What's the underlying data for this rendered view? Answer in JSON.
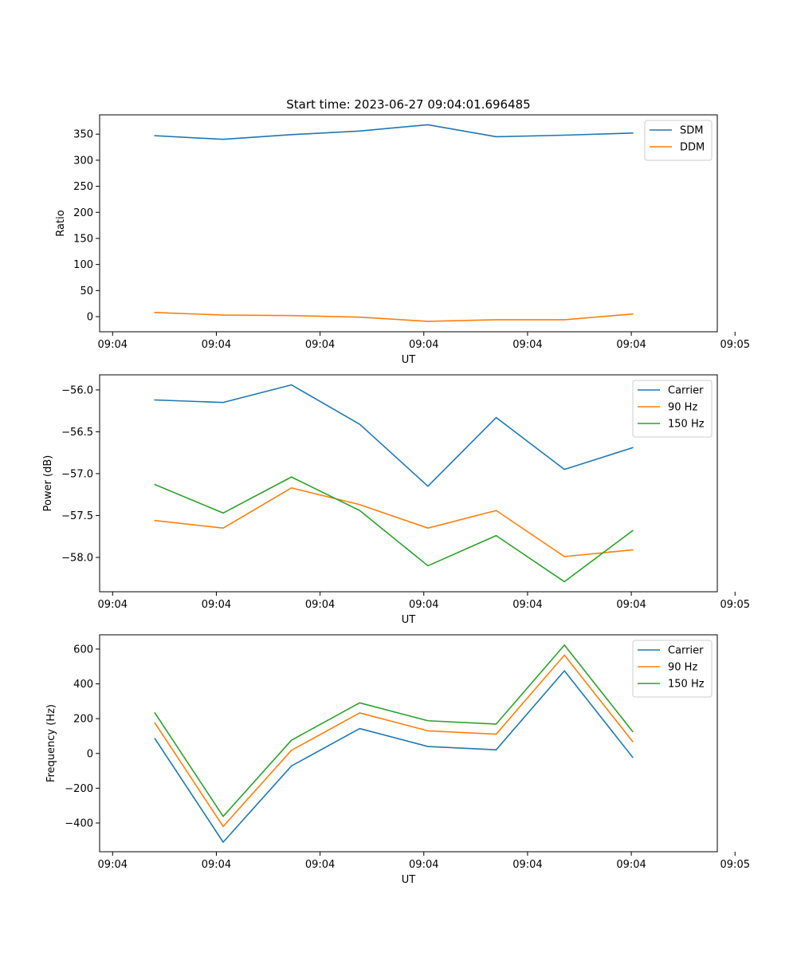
{
  "figure": {
    "title": "Start time: 2023-06-27 09:04:01.696485"
  },
  "colors": {
    "blue": "#1f77b4",
    "orange": "#ff7f0e",
    "green": "#2ca02c"
  },
  "chart_data": [
    {
      "type": "line",
      "title": "Start time: 2023-06-27 09:04:01.696485",
      "xlabel": "UT",
      "ylabel": "Ratio",
      "x": [
        1,
        2,
        3,
        4,
        5,
        6,
        7,
        8
      ],
      "xlim": [
        0.19,
        9.24
      ],
      "x_ticks": [
        0.38,
        1.9,
        3.42,
        4.94,
        6.46,
        7.98,
        9.5
      ],
      "x_tick_labels": [
        "09:04",
        "09:04",
        "09:04",
        "09:04",
        "09:04",
        "09:04",
        "09:05"
      ],
      "ylim": [
        -29,
        387
      ],
      "y_ticks": [
        0,
        50,
        100,
        150,
        200,
        250,
        300,
        350
      ],
      "y_tick_labels": [
        "0",
        "50",
        "100",
        "150",
        "200",
        "250",
        "300",
        "350"
      ],
      "legend_position": "upper right",
      "grid": false,
      "series": [
        {
          "name": "SDM",
          "color": "blue",
          "values": [
            347,
            340,
            349,
            356,
            368,
            345,
            348,
            352
          ]
        },
        {
          "name": "DDM",
          "color": "orange",
          "values": [
            8,
            3,
            2,
            -1,
            -9,
            -6,
            -6,
            5
          ]
        }
      ]
    },
    {
      "type": "line",
      "title": "",
      "xlabel": "UT",
      "ylabel": "Power (dB)",
      "x": [
        1,
        2,
        3,
        4,
        5,
        6,
        7,
        8
      ],
      "xlim": [
        0.19,
        9.24
      ],
      "x_ticks": [
        0.38,
        1.9,
        3.42,
        4.94,
        6.46,
        7.98,
        9.5
      ],
      "x_tick_labels": [
        "09:04",
        "09:04",
        "09:04",
        "09:04",
        "09:04",
        "09:04",
        "09:05"
      ],
      "ylim": [
        -58.41,
        -55.82
      ],
      "y_ticks": [
        -58.0,
        -57.5,
        -57.0,
        -56.5,
        -56.0
      ],
      "y_tick_labels": [
        "−58.0",
        "−57.5",
        "−57.0",
        "−56.5",
        "−56.0"
      ],
      "legend_position": "upper right",
      "grid": false,
      "series": [
        {
          "name": "Carrier",
          "color": "blue",
          "values": [
            -56.12,
            -56.15,
            -55.94,
            -56.41,
            -57.15,
            -56.33,
            -56.95,
            -56.69
          ]
        },
        {
          "name": "90 Hz",
          "color": "orange",
          "values": [
            -57.56,
            -57.65,
            -57.17,
            -57.37,
            -57.65,
            -57.44,
            -57.99,
            -57.91
          ]
        },
        {
          "name": "150 Hz",
          "color": "green",
          "values": [
            -57.13,
            -57.47,
            -57.04,
            -57.44,
            -58.1,
            -57.74,
            -58.29,
            -57.68
          ]
        }
      ]
    },
    {
      "type": "line",
      "title": "",
      "xlabel": "UT",
      "ylabel": "Frequency (Hz)",
      "x": [
        1,
        2,
        3,
        4,
        5,
        6,
        7,
        8
      ],
      "xlim": [
        0.19,
        9.24
      ],
      "x_ticks": [
        0.38,
        1.9,
        3.42,
        4.94,
        6.46,
        7.98,
        9.5
      ],
      "x_tick_labels": [
        "09:04",
        "09:04",
        "09:04",
        "09:04",
        "09:04",
        "09:04",
        "09:05"
      ],
      "ylim": [
        -565,
        682
      ],
      "y_ticks": [
        -400,
        -200,
        0,
        200,
        400,
        600
      ],
      "y_tick_labels": [
        "−400",
        "−200",
        "0",
        "200",
        "400",
        "600"
      ],
      "legend_position": "upper right",
      "grid": false,
      "series": [
        {
          "name": "Carrier",
          "color": "blue",
          "values": [
            85,
            -510,
            -72,
            143,
            40,
            21,
            475,
            -22
          ]
        },
        {
          "name": "90 Hz",
          "color": "orange",
          "values": [
            175,
            -420,
            18,
            233,
            130,
            111,
            565,
            68
          ]
        },
        {
          "name": "150 Hz",
          "color": "green",
          "values": [
            233,
            -362,
            76,
            291,
            188,
            169,
            623,
            126
          ]
        }
      ]
    }
  ]
}
